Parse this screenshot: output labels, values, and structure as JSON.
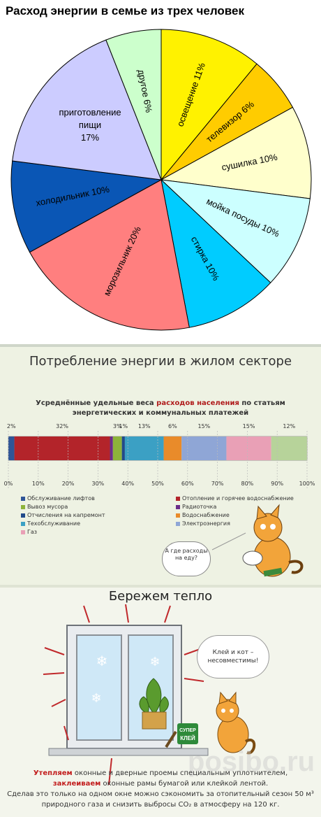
{
  "chart_data": [
    {
      "type": "pie",
      "title": "Расход энергии в семье из трех человек",
      "start_angle_deg": 0,
      "slices": [
        {
          "label": "освещение 11%",
          "value": 11,
          "color": "#fff200"
        },
        {
          "label": "телевизор 6%",
          "value": 6,
          "color": "#ffcc00"
        },
        {
          "label": "сушилка 10%",
          "value": 10,
          "color": "#ffffcc"
        },
        {
          "label": "мойка посуды 10%",
          "value": 10,
          "color": "#ccffff"
        },
        {
          "label": "стирка 10%",
          "value": 10,
          "color": "#00ccff"
        },
        {
          "label": "морозильник 20%",
          "value": 20,
          "color": "#ff7f7f"
        },
        {
          "label": "холодильник 10%",
          "value": 10,
          "color": "#0a56b5"
        },
        {
          "label": "приготовление пищи 17%",
          "value": 17,
          "color": "#ccccff"
        },
        {
          "label": "другое 6%",
          "value": 6,
          "color": "#ccffcc"
        }
      ]
    },
    {
      "type": "bar",
      "orientation": "horizontal-stacked",
      "title": "Потребление энергии в жилом секторе",
      "subtitle_parts": [
        "Усреднённые удельные веса ",
        "расходов населения",
        " по статьям энергетических и коммунальных платежей"
      ],
      "x_ticks": [
        "0%",
        "10%",
        "20%",
        "30%",
        "40%",
        "50%",
        "60%",
        "70%",
        "80%",
        "90%",
        "100%"
      ],
      "xlim": [
        0,
        100
      ],
      "segments": [
        {
          "name": "Обслуживание лифтов",
          "value": 2,
          "label": "2%",
          "color": "#2f5597"
        },
        {
          "name": "Отопление и горячее водоснабжение",
          "value": 32,
          "label": "32%",
          "color": "#b3242a"
        },
        {
          "name": "Радиоточка",
          "value": 1,
          "label": "",
          "color": "#6b2d8a"
        },
        {
          "name": "Вывоз мусора",
          "value": 3,
          "label": "3%",
          "color": "#8db33a"
        },
        {
          "name": "Отчисления на капремонт",
          "value": 1,
          "label": "1%",
          "color": "#214a8a"
        },
        {
          "name": "Техобслуживание",
          "value": 13,
          "label": "13%",
          "color": "#3ba0c4"
        },
        {
          "name": "Водоснабжение",
          "value": 6,
          "label": "6%",
          "color": "#e98b2a"
        },
        {
          "name": "Электроэнергия",
          "value": 15,
          "label": "15%",
          "color": "#8fa6d6"
        },
        {
          "name": "Газ",
          "value": 15,
          "label": "15%",
          "color": "#e9a0b6"
        },
        {
          "name": "Газ2",
          "value": 12,
          "label": "12%",
          "color": "#b7d39a"
        }
      ],
      "legend_left": [
        {
          "name": "Обслуживание лифтов",
          "color": "#2f5597"
        },
        {
          "name": "Вывоз мусора",
          "color": "#8db33a"
        },
        {
          "name": "Отчисления на капремонт",
          "color": "#214a8a"
        },
        {
          "name": "Техобслуживание",
          "color": "#3ba0c4"
        },
        {
          "name": "Газ",
          "color": "#e9a0b6"
        }
      ],
      "legend_right": [
        {
          "name": "Отопление и горячее водоснабжение",
          "color": "#b3242a"
        },
        {
          "name": "Радиоточка",
          "color": "#6b2d8a"
        },
        {
          "name": "Водоснабжение",
          "color": "#e98b2a"
        },
        {
          "name": "Электроэнергия",
          "color": "#8fa6d6"
        }
      ]
    }
  ],
  "section2": {
    "speech": "А где расходы на еду?"
  },
  "section3": {
    "title": "Бережем тепло",
    "speech": "Клей и кот – несовместимы!",
    "glue_label_1": "СУПЕР",
    "glue_label_2": "КЛЕЙ",
    "text_red_1": "Утепляем",
    "text_1": " оконные и дверные проемы специальным уплотнителем,",
    "text_red_2": "заклеиваем",
    "text_2": " оконные рамы бумагой или клейкой лентой.",
    "text_3": "Сделав это только на одном окне можно сэкономить за отопительный сезон 50 м³ природного газа и снизить выбросы CO₂ в атмосферу на 120 кг."
  },
  "watermark": "posibo.ru"
}
